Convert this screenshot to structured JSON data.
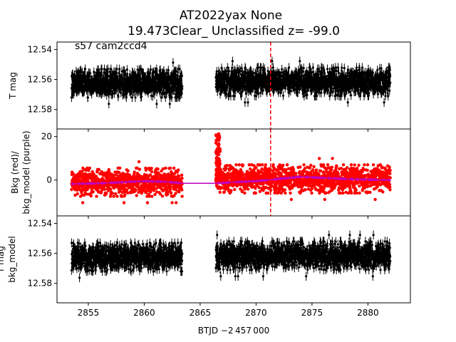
{
  "title_line1": "AT2022yax  None",
  "title_line2": "19.473Clear_ Unclassified z= -99.0",
  "annotation": "s57 cam2ccd4",
  "x_axis_label": "BTJD −2 457 000",
  "colors": {
    "data": "#000000",
    "background": "#ff0000",
    "model": "#bf00bf",
    "marker_line": "#ff0000"
  },
  "chart_data": [
    {
      "type": "scatter",
      "panel": "top",
      "ylabel": "T mag",
      "y_inverted": true,
      "xlim": [
        2852.2,
        2883.8
      ],
      "ylim": [
        12.535,
        12.593
      ],
      "x_ticks": [
        2855,
        2860,
        2865,
        2870,
        2875,
        2880
      ],
      "y_ticks": [
        12.54,
        12.56,
        12.58
      ],
      "y_tick_labels": [
        "12.54",
        "12.56",
        "12.58"
      ],
      "series": [
        {
          "color": "#000000",
          "segments": [
            {
              "x_start": 2853.5,
              "x_end": 2863.4,
              "center": 12.5625,
              "spread": 0.0095,
              "error": 0.003
            },
            {
              "x_start": 2866.4,
              "x_end": 2882.0,
              "center": 12.5615,
              "spread": 0.0095,
              "error": 0.003
            }
          ]
        }
      ],
      "vline_x": 2871.3
    },
    {
      "type": "scatter",
      "panel": "middle",
      "ylabel": "Bkg (red)/\nbkg_model (purple)",
      "xlim": [
        2852.2,
        2883.8
      ],
      "ylim": [
        -16.5,
        23.5
      ],
      "y_ticks": [
        0,
        20
      ],
      "y_tick_labels": [
        "0",
        "20"
      ],
      "series": [
        {
          "name": "Bkg",
          "color": "#ff0000",
          "segments": [
            {
              "x_start": 2853.5,
              "x_end": 2863.4,
              "center": -1.0,
              "spread": 6.5
            },
            {
              "x_start": 2866.4,
              "x_end": 2882.0,
              "center": 0.5,
              "spread": 6.5
            }
          ]
        },
        {
          "name": "bkg_model",
          "color": "#bf00bf",
          "x": [
            2853.5,
            2856,
            2858,
            2860,
            2862,
            2863.4,
            2866.4,
            2868,
            2870,
            2872,
            2874,
            2876,
            2878,
            2880,
            2882
          ],
          "y": [
            -1.8,
            -1.5,
            -1.0,
            -0.5,
            -0.8,
            -1.5,
            -1.5,
            -1.0,
            -0.5,
            0.5,
            1.5,
            1.0,
            0.5,
            0.2,
            0.0
          ]
        }
      ],
      "vline_x": 2871.3
    },
    {
      "type": "scatter",
      "panel": "bottom",
      "ylabel": "T mag\nbkg_model",
      "y_inverted": true,
      "xlim": [
        2852.2,
        2883.8
      ],
      "ylim": [
        12.535,
        12.593
      ],
      "x_ticks": [
        2855,
        2860,
        2865,
        2870,
        2875,
        2880
      ],
      "y_ticks": [
        12.54,
        12.56,
        12.58
      ],
      "y_tick_labels": [
        "12.54",
        "12.56",
        "12.58"
      ],
      "x_tick_labels": [
        "2855",
        "2860",
        "2865",
        "2870",
        "2875",
        "2880"
      ],
      "series": [
        {
          "color": "#000000",
          "segments": [
            {
              "x_start": 2853.5,
              "x_end": 2863.4,
              "center": 12.5625,
              "spread": 0.0095,
              "error": 0.003
            },
            {
              "x_start": 2866.4,
              "x_end": 2882.0,
              "center": 12.5615,
              "spread": 0.0095,
              "error": 0.003
            }
          ]
        }
      ]
    }
  ]
}
